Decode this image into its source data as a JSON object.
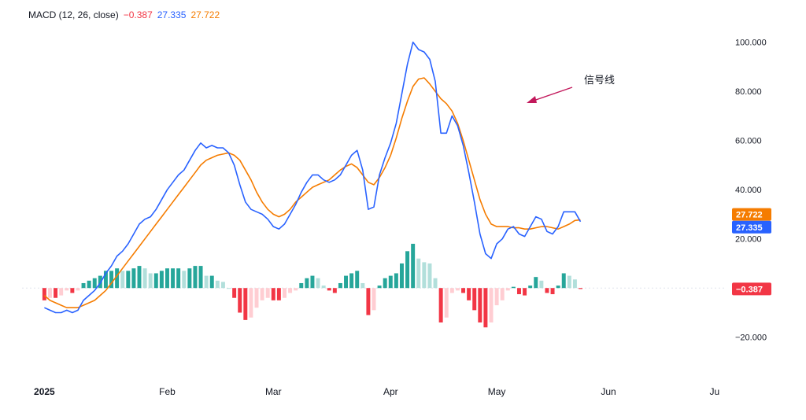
{
  "legend": {
    "indicator": "MACD (12, 26, close)",
    "histogram_value": "−0.387",
    "macd_value": "27.335",
    "signal_value": "27.722"
  },
  "annotation": {
    "text": "信号线"
  },
  "colors": {
    "macd": "#2962ff",
    "signal": "#f57c00",
    "hist_pos_strong": "#26a69a",
    "hist_pos_weak": "#b2dfdb",
    "hist_neg_strong": "#f23645",
    "hist_neg_weak": "#ffcdd2",
    "annotation_arrow": "#c2185b"
  },
  "chart_data": {
    "type": "line",
    "title": "",
    "x_axis": {
      "ticks": [
        "2025",
        "Feb",
        "Mar",
        "Apr",
        "May",
        "Jun",
        "Ju"
      ],
      "tick_positions": [
        0,
        22,
        41,
        62,
        81,
        101,
        120
      ],
      "xlim": [
        -4,
        122
      ]
    },
    "y_axis": {
      "ticks": [
        "100.000",
        "80.000",
        "60.000",
        "40.000",
        "20.000",
        "−20.000"
      ],
      "tick_values": [
        100,
        80,
        60,
        40,
        20,
        -20
      ],
      "ylim": [
        -30,
        105
      ]
    },
    "price_labels": [
      {
        "series": "signal",
        "text": "27.722",
        "value": 27.722
      },
      {
        "series": "macd",
        "text": "27.335",
        "value": 27.335
      },
      {
        "series": "histogram",
        "text": "−0.387",
        "value": -0.387
      }
    ],
    "series": [
      {
        "key": "macd",
        "values": [
          -8,
          -9,
          -10,
          -10,
          -9,
          -10,
          -9,
          -5,
          -3,
          -1,
          2,
          6,
          9,
          13,
          15,
          18,
          22,
          26,
          28,
          29,
          32,
          36,
          40,
          43,
          46,
          48,
          52,
          56,
          59,
          57,
          58,
          57,
          57,
          55,
          50,
          42,
          35,
          32,
          31,
          30,
          28,
          25,
          24,
          26,
          30,
          34,
          39,
          43,
          46,
          46,
          44,
          43,
          44,
          46,
          50,
          54,
          56,
          48,
          32,
          33,
          46,
          53,
          59,
          67,
          79,
          91,
          100,
          97,
          96,
          93,
          84,
          63,
          63,
          70,
          66,
          58,
          47,
          35,
          22,
          14,
          12,
          18,
          20,
          24,
          25,
          22,
          21,
          25,
          29,
          28,
          23,
          22,
          25,
          31,
          31,
          31,
          27
        ]
      },
      {
        "key": "signal",
        "values": [
          -3,
          -5,
          -6,
          -7,
          -8,
          -8,
          -8,
          -7,
          -6,
          -5,
          -3,
          -1,
          2,
          5,
          8,
          11,
          14,
          17,
          20,
          23,
          26,
          29,
          32,
          35,
          38,
          41,
          44,
          47,
          50,
          52,
          53,
          54,
          54.5,
          55,
          54,
          52,
          48,
          44,
          39,
          35,
          32,
          30,
          29,
          30,
          32,
          35,
          37,
          39,
          41,
          42,
          43,
          44,
          46,
          48,
          49.5,
          50.5,
          49,
          46,
          43,
          42,
          45,
          49,
          54,
          61,
          69,
          76,
          82,
          85,
          85.5,
          83,
          80,
          77,
          75,
          72,
          67,
          60,
          52,
          44,
          36,
          30,
          26,
          25,
          25,
          25,
          24.5,
          24.5,
          24,
          24,
          24.5,
          25,
          25,
          24.5,
          24,
          25,
          26,
          27.5,
          27.722
        ]
      },
      {
        "key": "histogram",
        "values": [
          -5,
          -4,
          -4,
          -3,
          -1,
          -2,
          -1,
          2,
          3,
          4,
          5,
          7,
          7,
          8,
          7,
          7,
          8,
          9,
          8,
          6,
          6,
          7,
          8,
          8,
          8,
          7,
          8,
          9,
          9,
          5,
          5,
          3,
          2.5,
          0,
          -4,
          -10,
          -13,
          -12,
          -8,
          -5,
          -4,
          -5,
          -5,
          -4,
          -2,
          -1,
          2,
          4,
          5,
          4,
          1,
          -1,
          -2,
          2,
          5,
          6,
          7,
          2,
          -11,
          -9,
          1,
          4,
          5,
          6,
          10,
          15,
          18,
          12,
          10.5,
          10,
          4,
          -14,
          -12,
          -2,
          -1,
          -2,
          -5,
          -9,
          -14,
          -16,
          -14,
          -7,
          -5,
          -1,
          0.5,
          -2.5,
          -3,
          1,
          4.5,
          3,
          -2,
          -2.5,
          1,
          6,
          5,
          3.5,
          -0.387
        ]
      }
    ]
  }
}
